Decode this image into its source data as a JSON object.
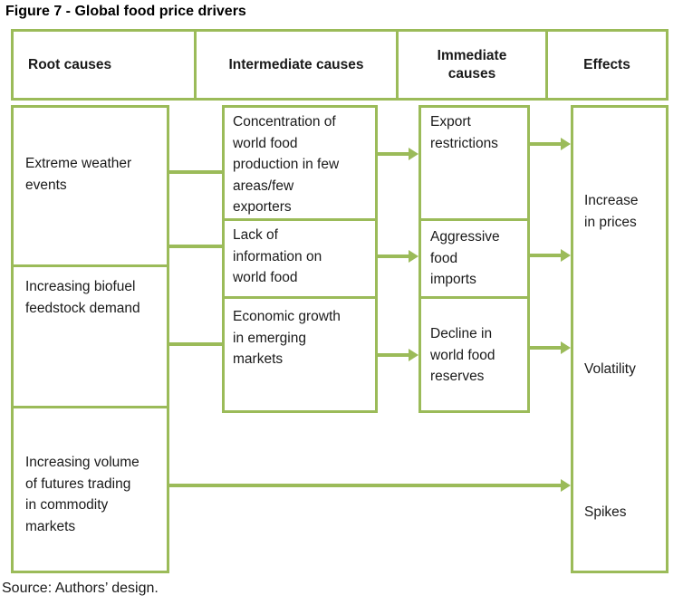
{
  "title": "Figure 7 - Global food price drivers",
  "source_note": "Source: Authors’ design.",
  "accent_color": "#9bbb59",
  "text_color": "#1a1a1a",
  "columns": {
    "root": {
      "header": "Root causes",
      "items": [
        "Extreme weather\nevents",
        "Increasing biofuel\nfeedstock demand",
        "Increasing volume\nof futures trading\nin commodity\nmarkets"
      ]
    },
    "intermediate": {
      "header": "Intermediate causes",
      "items": [
        "Concentration of\nworld food\nproduction in few\nareas/few\nexporters",
        "Lack of\ninformation on\nworld food",
        "Economic growth\nin emerging\nmarkets"
      ]
    },
    "immediate": {
      "header": "Immediate\ncauses",
      "items": [
        "Export\nrestrictions",
        "Aggressive\nfood\nimports",
        "Decline in\nworld food\nreserves"
      ]
    },
    "effects": {
      "header": "Effects",
      "items": [
        "Increase\nin prices",
        "Volatility",
        "Spikes"
      ]
    }
  },
  "links": [
    {
      "from": "extreme-weather-events",
      "to": "concentration-of-world-food-production",
      "arrow": false
    },
    {
      "from": "extreme-weather-events",
      "to": "lack-of-information-on-world-food",
      "arrow": false
    },
    {
      "from": "increasing-biofuel-feedstock-demand",
      "to": "economic-growth-in-emerging-markets",
      "arrow": false
    },
    {
      "from": "concentration-of-world-food-production",
      "to": "export-restrictions",
      "arrow": true
    },
    {
      "from": "lack-of-information-on-world-food",
      "to": "aggressive-food-imports",
      "arrow": true
    },
    {
      "from": "economic-growth-in-emerging-markets",
      "to": "decline-in-world-food-reserves",
      "arrow": true
    },
    {
      "from": "export-restrictions",
      "to": "effects",
      "arrow": true
    },
    {
      "from": "aggressive-food-imports",
      "to": "effects",
      "arrow": true
    },
    {
      "from": "decline-in-world-food-reserves",
      "to": "effects",
      "arrow": true
    },
    {
      "from": "increasing-volume-of-futures-trading",
      "to": "effects",
      "arrow": true
    }
  ]
}
